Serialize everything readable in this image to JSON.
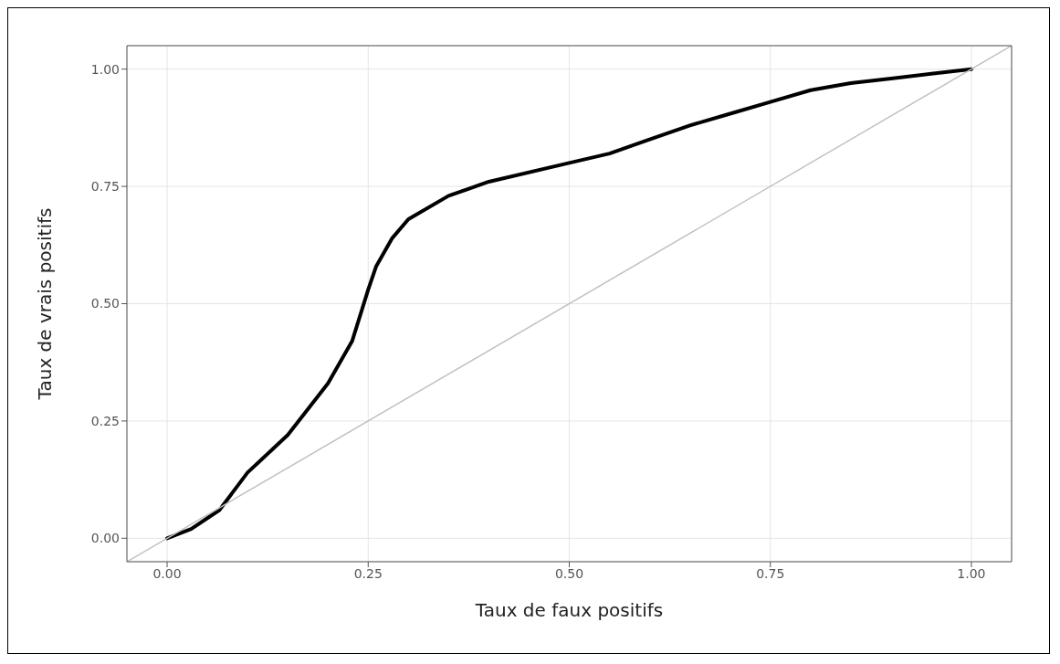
{
  "chart_data": {
    "type": "line",
    "xlabel": "Taux de faux positifs",
    "ylabel": "Taux de vrais positifs",
    "xlim": [
      -0.05,
      1.05
    ],
    "ylim": [
      -0.05,
      1.05
    ],
    "xticks": [
      {
        "value": 0,
        "label": "0.00"
      },
      {
        "value": 0.25,
        "label": "0.25"
      },
      {
        "value": 0.5,
        "label": "0.50"
      },
      {
        "value": 0.75,
        "label": "0.75"
      },
      {
        "value": 1,
        "label": "1.00"
      }
    ],
    "yticks": [
      {
        "value": 0,
        "label": "0.00"
      },
      {
        "value": 0.25,
        "label": "0.25"
      },
      {
        "value": 0.5,
        "label": "0.50"
      },
      {
        "value": 0.75,
        "label": "0.75"
      },
      {
        "value": 1,
        "label": "1.00"
      }
    ],
    "grid": true,
    "marker": "none",
    "series": [
      {
        "color": "#000000",
        "x": [
          0,
          0.03,
          0.065,
          0.1,
          0.15,
          0.2,
          0.23,
          0.25,
          0.26,
          0.28,
          0.3,
          0.35,
          0.4,
          0.5,
          0.55,
          0.6,
          0.65,
          0.7,
          0.75,
          0.8,
          0.85,
          0.9,
          0.95,
          1
        ],
        "values": [
          0,
          0.02,
          0.06,
          0.14,
          0.22,
          0.33,
          0.42,
          0.53,
          0.58,
          0.64,
          0.68,
          0.73,
          0.76,
          0.8,
          0.82,
          0.85,
          0.88,
          0.905,
          0.93,
          0.955,
          0.97,
          0.98,
          0.99,
          1
        ]
      },
      {
        "color": "#c0c0c0",
        "x": [
          -0.05,
          1.05
        ],
        "values": [
          -0.05,
          1.05
        ]
      }
    ]
  }
}
